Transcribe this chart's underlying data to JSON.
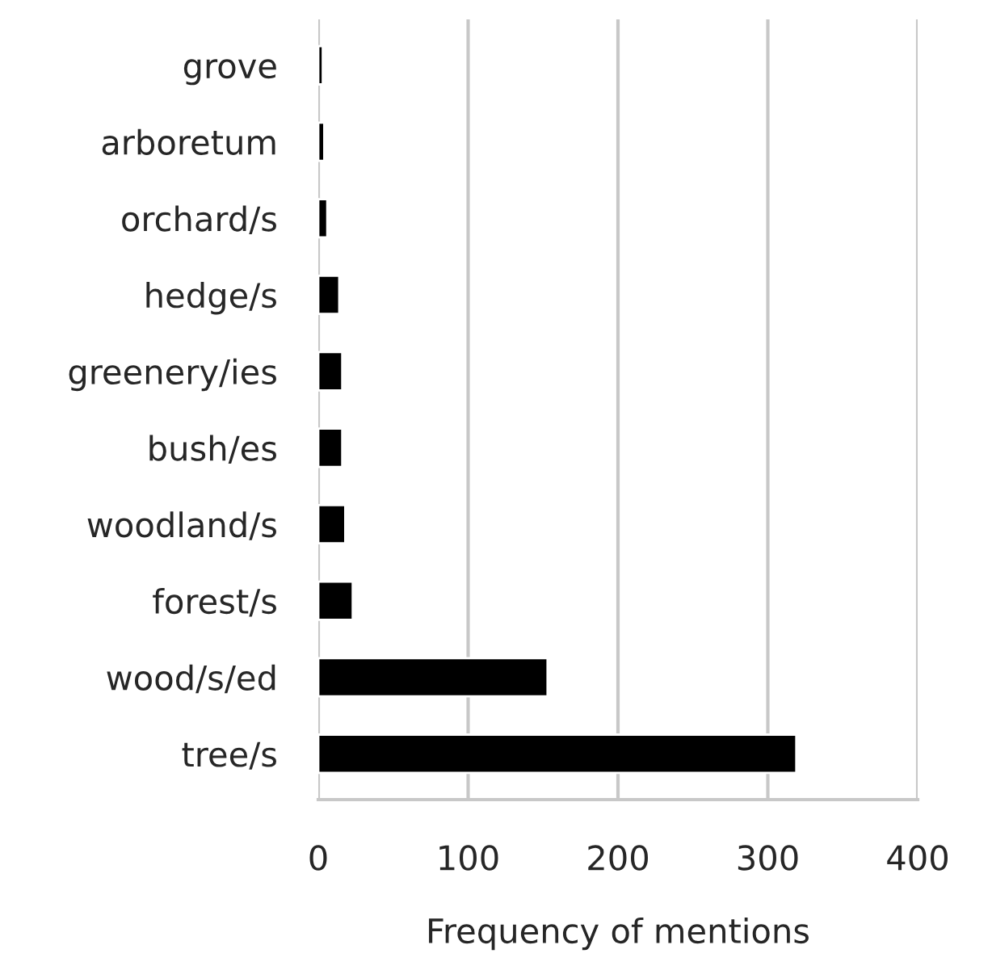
{
  "chart_data": {
    "type": "bar",
    "orientation": "horizontal",
    "xlabel": "Frequency of mentions",
    "categories": [
      "grove",
      "arboretum",
      "orchard/s",
      "hedge/s",
      "greenery/ies",
      "bush/es",
      "woodland/s",
      "forest/s",
      "wood/s/ed",
      "tree/s"
    ],
    "values": [
      3,
      4,
      6,
      14,
      16,
      16,
      18,
      23,
      153,
      319
    ],
    "color": "#000000",
    "xlim": [
      0,
      400
    ],
    "xticks": [
      0,
      100,
      200,
      300,
      400
    ],
    "grid": "x"
  }
}
